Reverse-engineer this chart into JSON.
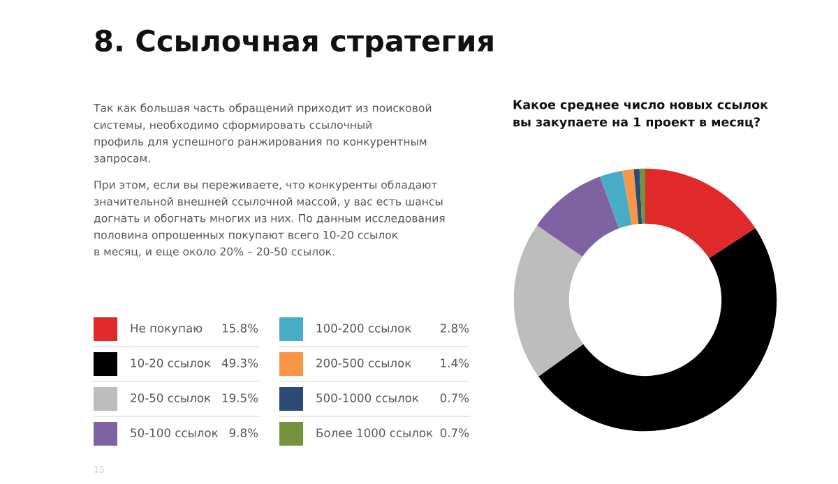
{
  "chart_data": {
    "type": "donut",
    "title": "8. Ссылочная стратегия",
    "subtitle": "Какое среднее число новых ссылок\nвы закупаете на 1 проект в месяц?",
    "categories": [
      "Не покупаю",
      "10-20 ссылок",
      "20-50 ссылок",
      "50-100 ссылок",
      "100-200 ссылок",
      "200-500 ссылок",
      "500-1000 ссылок",
      "Более 1000 ссылок"
    ],
    "values": [
      15.8,
      49.3,
      19.5,
      9.8,
      2.8,
      1.4,
      0.7,
      0.7
    ],
    "colors": [
      "#e0292a",
      "#000000",
      "#bdbdbd",
      "#7f62a2",
      "#47adc7",
      "#f79646",
      "#2b4a75",
      "#76923c"
    ],
    "value_labels": [
      "15.8%",
      "49.3%",
      "19.5%",
      "9.8%",
      "2.8%",
      "1.4%",
      "0.7%",
      "0.7%"
    ],
    "legend": "left",
    "annotations": [
      "Так как большая часть обращений приходит из поисковой\nсистемы, необходимо сформировать ссылочный\nпрофиль для успешного ранжирования по конкурентным\nзапросам.",
      "При этом, если вы переживаете, что конкуренты обладают\nзначительной внешней ссылочной массой, у вас есть шансы\nдогнать и обогнать многих из них. По данным исследования\nполовина опрошенных покупают всего 10-20 ссылок\nв месяц, и еще около 20% – 20-50 ссылок.",
      "15"
    ]
  }
}
